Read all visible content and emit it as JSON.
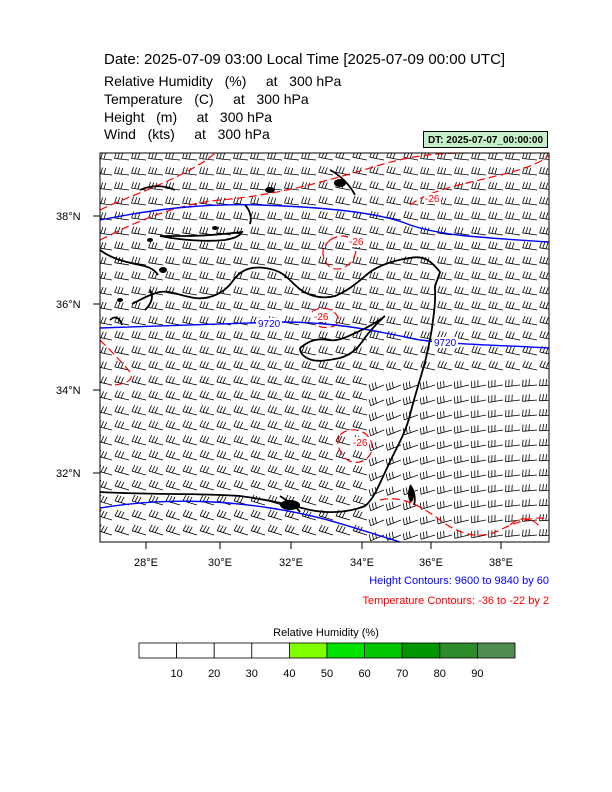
{
  "header": {
    "title": "Date: 2025-07-09  03:00 Local Time [2025-07-09  00:00 UTC]",
    "variables": [
      "Relative Humidity   (%)     at   300 hPa",
      "Temperature   (C)     at   300 hPa",
      "Height   (m)     at   300 hPa",
      "Wind   (kts)     at   300 hPa"
    ],
    "dt_label": "DT: 2025-07-07_00:00:00"
  },
  "map": {
    "lat_labels": [
      "38°N",
      "36°N",
      "34°N",
      "32°N"
    ],
    "lon_labels": [
      "28°E",
      "30°E",
      "32°E",
      "34°E",
      "36°E",
      "38°E"
    ],
    "height_contour_label": "9720",
    "temperature_contour_label": "-26",
    "colors": {
      "height": "#0000ff",
      "temperature": "#ff0000",
      "coast": "#000000"
    }
  },
  "legends": {
    "height": "Height Contours: 9600 to 9840 by 60",
    "temperature": "Temperature Contours: -36 to -22 by 2"
  },
  "colorbar": {
    "title": "Relative Humidity  (%)",
    "ticks": [
      "10",
      "20",
      "30",
      "40",
      "50",
      "60",
      "70",
      "80",
      "90"
    ],
    "colors": [
      "#ffffff",
      "#ffffff",
      "#ffffff",
      "#ffffff",
      "#80ff00",
      "#00e400",
      "#00c800",
      "#009600",
      "#2c8c2c",
      "#508c50"
    ]
  }
}
